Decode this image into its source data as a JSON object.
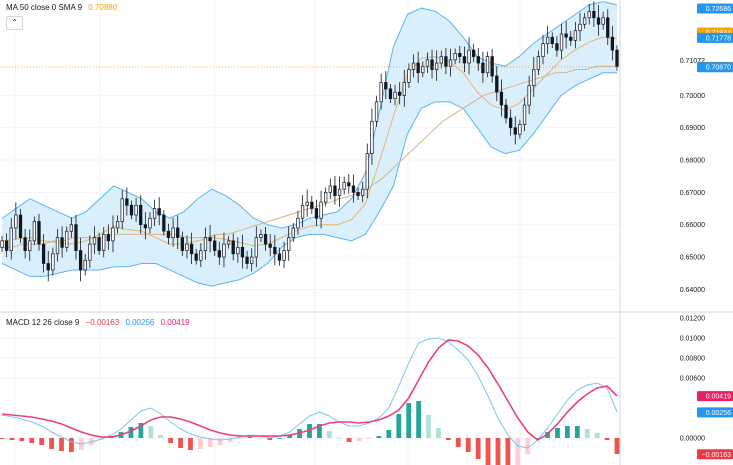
{
  "main_legend": {
    "label": "MA 50 close 0 SMA 9",
    "value": "0.70880",
    "value_color": "#f7a600",
    "collapse_icon": "chevron-up-icon"
  },
  "macd_legend": {
    "label": "MACD 12 26 close 9",
    "macd_value": "−0.00163",
    "signal_value": "0.00256",
    "hist_value": "0.00419",
    "macd_color": "#f23645",
    "signal_color": "#2196f3",
    "hist_color": "#e91e63"
  },
  "colors": {
    "candle": "#131722",
    "band_fill": "#cde9fb",
    "band_line": "#5bb5ee",
    "basis_line": "#e6b56a",
    "ma_line": "#d9b38c",
    "macd_line": "#7ec4f3",
    "signal_line": "#ec407a",
    "hist_pos_strong": "#26a69a",
    "hist_pos_weak": "#b2dfdb",
    "hist_neg_strong": "#ef5350",
    "hist_neg_weak": "#ffcdd2"
  },
  "chart_data": [
    {
      "type": "candlestick",
      "ylim": [
        0.633,
        0.7295
      ],
      "y_ticks": [
        "0.72686",
        "0.71944",
        "0.71778",
        "0.71072",
        "0.70880",
        "0.70870",
        "0.70000",
        "0.69000",
        "0.68000",
        "0.67000",
        "0.66000",
        "0.65000",
        "0.64000"
      ],
      "price_badges": [
        {
          "value": "0.72686",
          "color": "#2196f3"
        },
        {
          "value": "0.71944",
          "color": "#f7a600"
        },
        {
          "value": "0.71778",
          "color": "#2196f3"
        },
        {
          "value": "0.70880",
          "color": "#f57c00"
        },
        {
          "value": "0.70870",
          "color": "#2196f3"
        }
      ],
      "plain_labels": [
        "0.71072",
        "0.70000",
        "0.69000",
        "0.68000",
        "0.67000",
        "0.66000",
        "0.65000",
        "0.64000"
      ],
      "close_series": [
        0.655,
        0.652,
        0.659,
        0.663,
        0.656,
        0.652,
        0.655,
        0.661,
        0.654,
        0.648,
        0.646,
        0.651,
        0.656,
        0.653,
        0.658,
        0.66,
        0.652,
        0.646,
        0.649,
        0.654,
        0.656,
        0.652,
        0.657,
        0.655,
        0.659,
        0.661,
        0.668,
        0.666,
        0.663,
        0.666,
        0.66,
        0.659,
        0.662,
        0.665,
        0.663,
        0.658,
        0.656,
        0.659,
        0.656,
        0.652,
        0.654,
        0.651,
        0.649,
        0.652,
        0.656,
        0.655,
        0.652,
        0.65,
        0.654,
        0.655,
        0.651,
        0.653,
        0.65,
        0.648,
        0.65,
        0.656,
        0.657,
        0.654,
        0.653,
        0.651,
        0.649,
        0.652,
        0.656,
        0.659,
        0.662,
        0.666,
        0.667,
        0.665,
        0.662,
        0.667,
        0.67,
        0.672,
        0.669,
        0.671,
        0.673,
        0.672,
        0.67,
        0.669,
        0.671,
        0.682,
        0.692,
        0.698,
        0.704,
        0.702,
        0.699,
        0.701,
        0.7,
        0.704,
        0.708,
        0.71,
        0.707,
        0.709,
        0.711,
        0.708,
        0.71,
        0.712,
        0.709,
        0.711,
        0.713,
        0.712,
        0.71,
        0.714,
        0.712,
        0.71,
        0.707,
        0.712,
        0.706,
        0.701,
        0.697,
        0.693,
        0.69,
        0.688,
        0.691,
        0.697,
        0.703,
        0.708,
        0.712,
        0.716,
        0.718,
        0.716,
        0.714,
        0.719,
        0.718,
        0.717,
        0.72,
        0.722,
        0.724,
        0.726,
        0.724,
        0.722,
        0.724,
        0.718,
        0.714,
        0.709
      ],
      "ma50_series": [
        0.653,
        0.653,
        0.654,
        0.654,
        0.654,
        0.655,
        0.655,
        0.656,
        0.656,
        0.656,
        0.656,
        0.657,
        0.657,
        0.657,
        0.657,
        0.657,
        0.657,
        0.657,
        0.656,
        0.656,
        0.656,
        0.657,
        0.657,
        0.658,
        0.659,
        0.66,
        0.661,
        0.662,
        0.663,
        0.664,
        0.665,
        0.666,
        0.667,
        0.668,
        0.669,
        0.67,
        0.672,
        0.674,
        0.677,
        0.68,
        0.683,
        0.686,
        0.689,
        0.692,
        0.694,
        0.696,
        0.698,
        0.7,
        0.701,
        0.702,
        0.703,
        0.704,
        0.705,
        0.706,
        0.707,
        0.707,
        0.708,
        0.708,
        0.709,
        0.709,
        0.709
      ],
      "upper_band": [
        0.662,
        0.665,
        0.668,
        0.666,
        0.664,
        0.662,
        0.664,
        0.668,
        0.672,
        0.67,
        0.668,
        0.664,
        0.662,
        0.664,
        0.668,
        0.671,
        0.669,
        0.666,
        0.662,
        0.66,
        0.659,
        0.66,
        0.662,
        0.663,
        0.664,
        0.668,
        0.676,
        0.695,
        0.715,
        0.725,
        0.727,
        0.726,
        0.723,
        0.718,
        0.712,
        0.71,
        0.709,
        0.712,
        0.716,
        0.719,
        0.722,
        0.725,
        0.728,
        0.729,
        0.728
      ],
      "lower_band": [
        0.648,
        0.646,
        0.644,
        0.644,
        0.645,
        0.646,
        0.646,
        0.646,
        0.647,
        0.647,
        0.648,
        0.648,
        0.646,
        0.644,
        0.642,
        0.641,
        0.642,
        0.643,
        0.645,
        0.648,
        0.653,
        0.656,
        0.657,
        0.657,
        0.656,
        0.655,
        0.657,
        0.664,
        0.672,
        0.688,
        0.696,
        0.698,
        0.698,
        0.696,
        0.69,
        0.684,
        0.682,
        0.683,
        0.688,
        0.694,
        0.7,
        0.703,
        0.705,
        0.707,
        0.707
      ]
    },
    {
      "type": "macd",
      "ylim": [
        -0.0027,
        0.0125
      ],
      "y_ticks": [
        "0.01200",
        "0.01000",
        "0.00800",
        "0.00600",
        "0.00419",
        "0.00256",
        "0.00000",
        "−0.00163"
      ],
      "price_badges": [
        {
          "value": "0.00419",
          "color": "#e91e63"
        },
        {
          "value": "0.00256",
          "color": "#2196f3"
        },
        {
          "value": "−0.00163",
          "color": "#f23645"
        }
      ],
      "plain_labels": [
        "0.01200",
        "0.01000",
        "0.00800",
        "0.00600",
        "0.00000"
      ],
      "macd_series": [
        0.0023,
        0.0021,
        0.0019,
        0.0016,
        0.0012,
        0.0006,
        0.0001,
        -0.0004,
        -0.0006,
        -0.0004,
        -0.0001,
        0.0003,
        0.0009,
        0.0018,
        0.0027,
        0.003,
        0.0024,
        0.0016,
        0.0009,
        0.0004,
        0.0001,
        -0.0001,
        -0.0002,
        -0.0001,
        0.0001,
        0.0003,
        0.0002,
        0.0,
        0.0002,
        0.0006,
        0.0014,
        0.0022,
        0.0026,
        0.0022,
        0.0016,
        0.0012,
        0.0012,
        0.0015,
        0.002,
        0.003,
        0.0052,
        0.0075,
        0.0095,
        0.0099,
        0.01,
        0.0096,
        0.0088,
        0.0078,
        0.0062,
        0.0042,
        0.002,
        0.0003,
        -0.0008,
        -0.001,
        -0.0002,
        0.001,
        0.0024,
        0.0038,
        0.0048,
        0.0053,
        0.0055,
        0.005,
        0.0026
      ],
      "signal_series": [
        0.0024,
        0.0023,
        0.0022,
        0.0021,
        0.0019,
        0.0017,
        0.0014,
        0.001,
        0.0006,
        0.0003,
        0.0001,
        0.0001,
        0.0003,
        0.0007,
        0.0012,
        0.0018,
        0.0021,
        0.0021,
        0.0019,
        0.0016,
        0.0012,
        0.0008,
        0.0005,
        0.0003,
        0.0002,
        0.0002,
        0.0002,
        0.0002,
        0.0002,
        0.0003,
        0.0005,
        0.0008,
        0.0012,
        0.0015,
        0.0016,
        0.0016,
        0.0015,
        0.0016,
        0.0018,
        0.0022,
        0.0028,
        0.004,
        0.0058,
        0.0076,
        0.009,
        0.0098,
        0.0097,
        0.0092,
        0.0083,
        0.007,
        0.0054,
        0.0037,
        0.002,
        0.0006,
        -0.0002,
        0.0004,
        0.0014,
        0.0026,
        0.0036,
        0.0044,
        0.005,
        0.0052,
        0.0042
      ],
      "histogram": [
        -0.0001,
        -0.0002,
        -0.0003,
        -0.0005,
        -0.0007,
        -0.0011,
        -0.0013,
        -0.0014,
        -0.0012,
        -0.0007,
        -0.0002,
        0.0002,
        0.0006,
        0.0011,
        0.0015,
        0.0012,
        0.0003,
        -0.0005,
        -0.001,
        -0.0012,
        -0.0011,
        -0.0009,
        -0.0007,
        -0.0004,
        -0.0001,
        0.0001,
        0.0,
        -0.0002,
        0.0,
        0.0003,
        0.0009,
        0.0014,
        0.0014,
        0.0007,
        0.0,
        -0.0004,
        -0.0003,
        -0.0001,
        0.0002,
        0.0008,
        0.0024,
        0.0035,
        0.0037,
        0.0023,
        0.001,
        -0.0002,
        -0.0009,
        -0.0014,
        -0.0021,
        -0.0028,
        -0.0034,
        -0.0034,
        -0.0028,
        -0.0016,
        0.0,
        0.0006,
        0.001,
        0.0012,
        0.0012,
        0.0009,
        0.0005,
        -0.0002,
        -0.0016
      ]
    }
  ]
}
